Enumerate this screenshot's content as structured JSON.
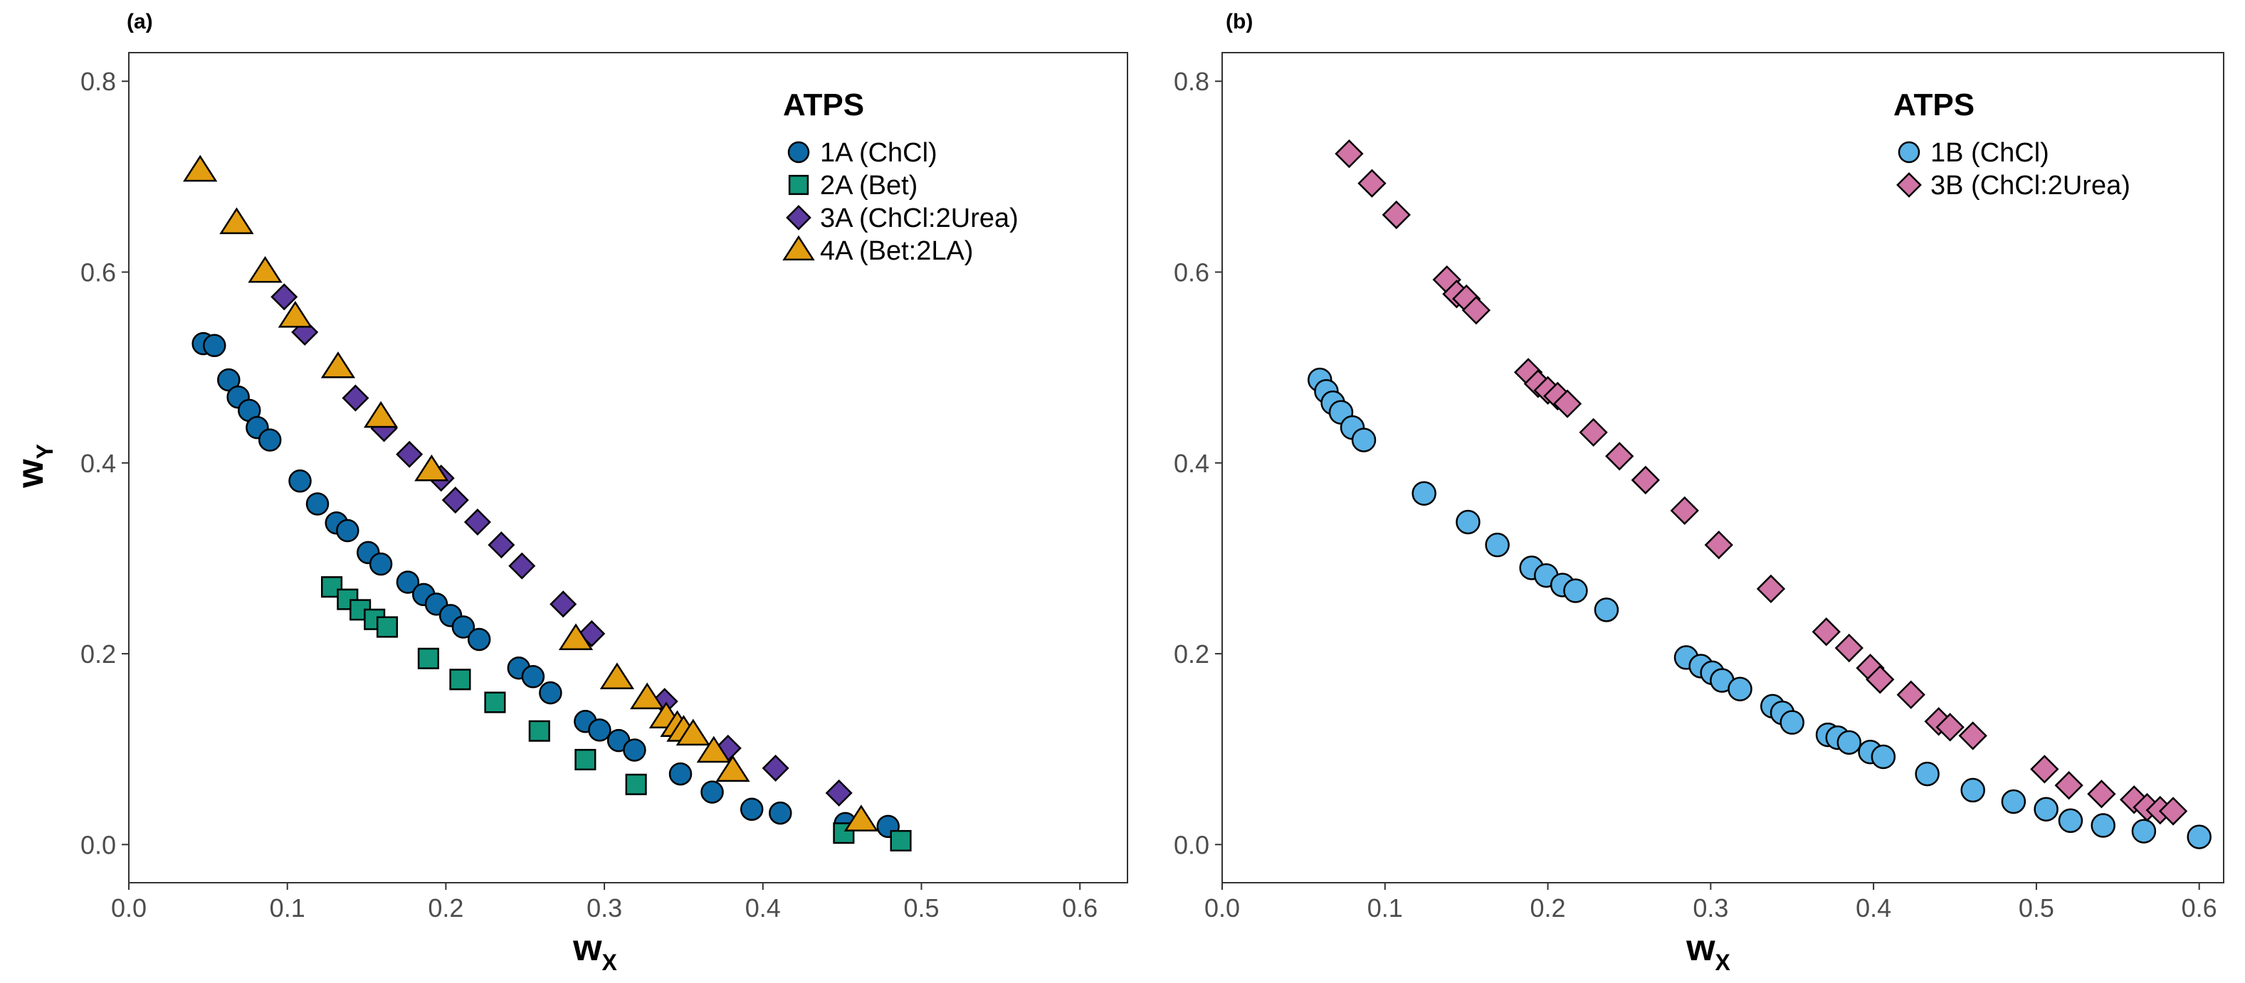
{
  "chart_data": [
    {
      "panel_label": "(a)",
      "type": "scatter",
      "xlabel": "w",
      "xlabel_sub": "X",
      "ylabel": "w",
      "ylabel_sub": "Y",
      "xlim": [
        0.0,
        0.63
      ],
      "ylim": [
        -0.04,
        0.83
      ],
      "xticks": [
        "0.0",
        "0.1",
        "0.2",
        "0.3",
        "0.4",
        "0.5",
        "0.6"
      ],
      "yticks": [
        "0.0",
        "0.2",
        "0.4",
        "0.6",
        "0.8"
      ],
      "grid": false,
      "legend_title": "ATPS",
      "legend_position": "top-right",
      "series": [
        {
          "name": "1A (ChCl)",
          "marker": "circle",
          "color": "#0e6aa6",
          "points": [
            [
              0.047,
              0.525
            ],
            [
              0.054,
              0.523
            ],
            [
              0.063,
              0.487
            ],
            [
              0.069,
              0.469
            ],
            [
              0.076,
              0.455
            ],
            [
              0.081,
              0.437
            ],
            [
              0.089,
              0.424
            ],
            [
              0.108,
              0.381
            ],
            [
              0.119,
              0.357
            ],
            [
              0.131,
              0.337
            ],
            [
              0.138,
              0.329
            ],
            [
              0.151,
              0.306
            ],
            [
              0.159,
              0.294
            ],
            [
              0.176,
              0.275
            ],
            [
              0.186,
              0.262
            ],
            [
              0.194,
              0.252
            ],
            [
              0.203,
              0.24
            ],
            [
              0.211,
              0.228
            ],
            [
              0.221,
              0.215
            ],
            [
              0.246,
              0.185
            ],
            [
              0.255,
              0.176
            ],
            [
              0.266,
              0.159
            ],
            [
              0.288,
              0.129
            ],
            [
              0.297,
              0.12
            ],
            [
              0.309,
              0.109
            ],
            [
              0.319,
              0.099
            ],
            [
              0.348,
              0.074
            ],
            [
              0.368,
              0.055
            ],
            [
              0.393,
              0.037
            ],
            [
              0.411,
              0.033
            ],
            [
              0.452,
              0.022
            ],
            [
              0.479,
              0.019
            ]
          ]
        },
        {
          "name": "2A (Bet)",
          "marker": "square",
          "color": "#11967a",
          "points": [
            [
              0.128,
              0.27
            ],
            [
              0.138,
              0.257
            ],
            [
              0.146,
              0.246
            ],
            [
              0.155,
              0.236
            ],
            [
              0.163,
              0.228
            ],
            [
              0.189,
              0.195
            ],
            [
              0.209,
              0.173
            ],
            [
              0.231,
              0.149
            ],
            [
              0.259,
              0.119
            ],
            [
              0.288,
              0.089
            ],
            [
              0.32,
              0.063
            ],
            [
              0.451,
              0.012
            ],
            [
              0.487,
              0.004
            ]
          ]
        },
        {
          "name": "3A (ChCl:2Urea)",
          "marker": "diamond",
          "color": "#5d3aa0",
          "points": [
            [
              0.098,
              0.574
            ],
            [
              0.111,
              0.537
            ],
            [
              0.143,
              0.468
            ],
            [
              0.161,
              0.436
            ],
            [
              0.177,
              0.409
            ],
            [
              0.197,
              0.384
            ],
            [
              0.206,
              0.361
            ],
            [
              0.22,
              0.338
            ],
            [
              0.235,
              0.314
            ],
            [
              0.248,
              0.292
            ],
            [
              0.274,
              0.252
            ],
            [
              0.292,
              0.221
            ],
            [
              0.338,
              0.15
            ],
            [
              0.378,
              0.101
            ],
            [
              0.408,
              0.08
            ],
            [
              0.448,
              0.054
            ]
          ]
        },
        {
          "name": "4A (Bet:2LA)",
          "marker": "triangle",
          "color": "#e39d10",
          "points": [
            [
              0.045,
              0.706
            ],
            [
              0.068,
              0.651
            ],
            [
              0.086,
              0.6
            ],
            [
              0.105,
              0.553
            ],
            [
              0.132,
              0.5
            ],
            [
              0.159,
              0.448
            ],
            [
              0.191,
              0.392
            ],
            [
              0.282,
              0.215
            ],
            [
              0.308,
              0.174
            ],
            [
              0.327,
              0.153
            ],
            [
              0.339,
              0.133
            ],
            [
              0.346,
              0.124
            ],
            [
              0.35,
              0.119
            ],
            [
              0.356,
              0.115
            ],
            [
              0.369,
              0.097
            ],
            [
              0.381,
              0.077
            ],
            [
              0.462,
              0.025
            ]
          ]
        }
      ]
    },
    {
      "panel_label": "(b)",
      "type": "scatter",
      "xlabel": "w",
      "xlabel_sub": "X",
      "ylabel": "",
      "ylabel_sub": "",
      "xlim": [
        0.0,
        0.615
      ],
      "ylim": [
        -0.04,
        0.83
      ],
      "xticks": [
        "0.0",
        "0.1",
        "0.2",
        "0.3",
        "0.4",
        "0.5",
        "0.6"
      ],
      "yticks": [
        "0.0",
        "0.2",
        "0.4",
        "0.6",
        "0.8"
      ],
      "grid": false,
      "legend_title": "ATPS",
      "legend_position": "top-right",
      "series": [
        {
          "name": "1B (ChCl)",
          "marker": "circle",
          "color": "#5ab2e6",
          "points": [
            [
              0.06,
              0.487
            ],
            [
              0.064,
              0.475
            ],
            [
              0.068,
              0.463
            ],
            [
              0.073,
              0.453
            ],
            [
              0.08,
              0.437
            ],
            [
              0.087,
              0.424
            ],
            [
              0.124,
              0.368
            ],
            [
              0.151,
              0.338
            ],
            [
              0.169,
              0.314
            ],
            [
              0.19,
              0.29
            ],
            [
              0.199,
              0.282
            ],
            [
              0.209,
              0.272
            ],
            [
              0.217,
              0.266
            ],
            [
              0.236,
              0.246
            ],
            [
              0.285,
              0.196
            ],
            [
              0.294,
              0.187
            ],
            [
              0.301,
              0.18
            ],
            [
              0.307,
              0.172
            ],
            [
              0.318,
              0.163
            ],
            [
              0.338,
              0.145
            ],
            [
              0.344,
              0.138
            ],
            [
              0.35,
              0.128
            ],
            [
              0.372,
              0.115
            ],
            [
              0.378,
              0.112
            ],
            [
              0.385,
              0.107
            ],
            [
              0.398,
              0.097
            ],
            [
              0.406,
              0.092
            ],
            [
              0.433,
              0.074
            ],
            [
              0.461,
              0.057
            ],
            [
              0.486,
              0.045
            ],
            [
              0.506,
              0.037
            ],
            [
              0.521,
              0.025
            ],
            [
              0.541,
              0.02
            ],
            [
              0.566,
              0.014
            ],
            [
              0.6,
              0.008
            ]
          ]
        },
        {
          "name": "3B (ChCl:2Urea)",
          "marker": "diamond",
          "color": "#d174a6",
          "points": [
            [
              0.078,
              0.724
            ],
            [
              0.092,
              0.693
            ],
            [
              0.107,
              0.66
            ],
            [
              0.138,
              0.592
            ],
            [
              0.144,
              0.577
            ],
            [
              0.15,
              0.572
            ],
            [
              0.156,
              0.56
            ],
            [
              0.188,
              0.495
            ],
            [
              0.194,
              0.483
            ],
            [
              0.2,
              0.476
            ],
            [
              0.206,
              0.47
            ],
            [
              0.212,
              0.462
            ],
            [
              0.228,
              0.432
            ],
            [
              0.244,
              0.407
            ],
            [
              0.26,
              0.382
            ],
            [
              0.284,
              0.35
            ],
            [
              0.305,
              0.314
            ],
            [
              0.337,
              0.268
            ],
            [
              0.371,
              0.223
            ],
            [
              0.385,
              0.206
            ],
            [
              0.398,
              0.185
            ],
            [
              0.404,
              0.173
            ],
            [
              0.423,
              0.157
            ],
            [
              0.44,
              0.129
            ],
            [
              0.447,
              0.123
            ],
            [
              0.461,
              0.114
            ],
            [
              0.505,
              0.079
            ],
            [
              0.52,
              0.062
            ],
            [
              0.54,
              0.053
            ],
            [
              0.56,
              0.047
            ],
            [
              0.568,
              0.039
            ],
            [
              0.576,
              0.036
            ],
            [
              0.584,
              0.035
            ]
          ]
        }
      ]
    }
  ]
}
